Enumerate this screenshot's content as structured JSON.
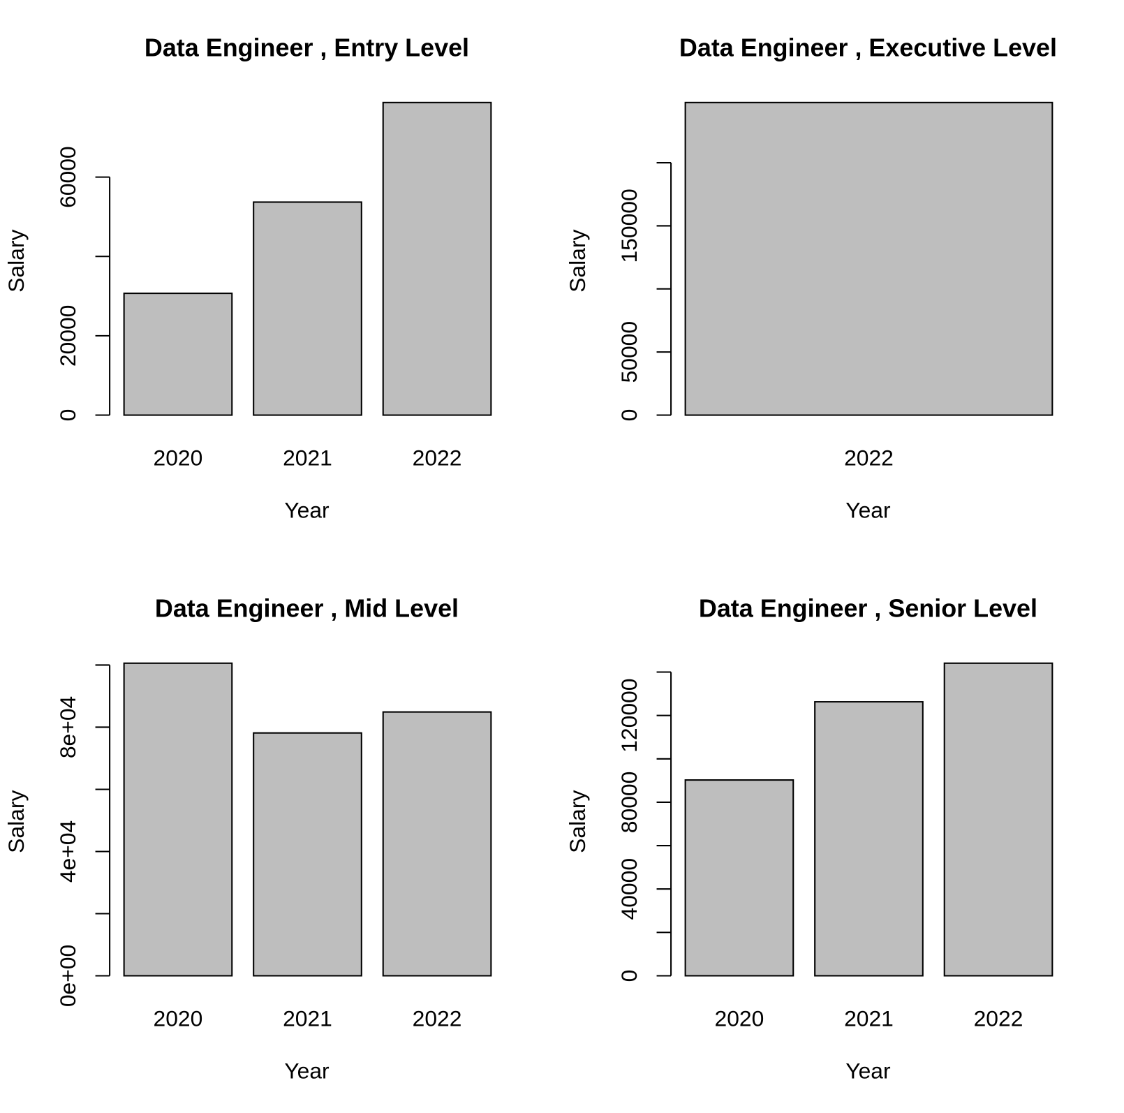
{
  "chart_data": [
    {
      "type": "bar",
      "title": "Data Engineer ,  Entry Level",
      "x_label": "Year",
      "y_label": "Salary",
      "categories": [
        "2020",
        "2021",
        "2022"
      ],
      "values": [
        30700,
        53700,
        78800
      ],
      "color": "#bebebe",
      "ylim": [
        0,
        78800
      ],
      "yticks": [
        0,
        20000,
        {
          "value": 40000,
          "label": null
        },
        60000
      ]
    },
    {
      "type": "bar",
      "title": "Data Engineer ,  Executive Level",
      "x_label": "Year",
      "y_label": "Salary",
      "categories": [
        "2022"
      ],
      "values": [
        247700
      ],
      "color": "#bebebe",
      "ylim": [
        0,
        247700
      ],
      "yticks": [
        0,
        50000,
        {
          "value": 100000,
          "label": null
        },
        150000,
        {
          "value": 200000,
          "label": null
        }
      ]
    },
    {
      "type": "bar",
      "title": "Data Engineer ,  Mid Level",
      "x_label": "Year",
      "y_label": "Salary",
      "categories": [
        "2020",
        "2021",
        "2022"
      ],
      "values": [
        100600,
        78150,
        84900
      ],
      "color": "#bebebe",
      "ylim": [
        0,
        100600
      ],
      "yticks": [
        {
          "value": 0,
          "label": "0e+00"
        },
        {
          "value": 20000,
          "label": null
        },
        {
          "value": 40000,
          "label": "4e+04"
        },
        {
          "value": 60000,
          "label": null
        },
        {
          "value": 80000,
          "label": "8e+04"
        },
        {
          "value": 100000,
          "label": null
        }
      ]
    },
    {
      "type": "bar",
      "title": "Data Engineer ,  Senior Level",
      "x_label": "Year",
      "y_label": "Salary",
      "categories": [
        "2020",
        "2021",
        "2022"
      ],
      "values": [
        90250,
        126300,
        144100
      ],
      "color": "#bebebe",
      "ylim": [
        0,
        144100
      ],
      "yticks": [
        0,
        {
          "value": 20000,
          "label": null
        },
        40000,
        {
          "value": 60000,
          "label": null
        },
        80000,
        {
          "value": 100000,
          "label": null
        },
        120000,
        {
          "value": 140000,
          "label": null
        }
      ]
    }
  ]
}
